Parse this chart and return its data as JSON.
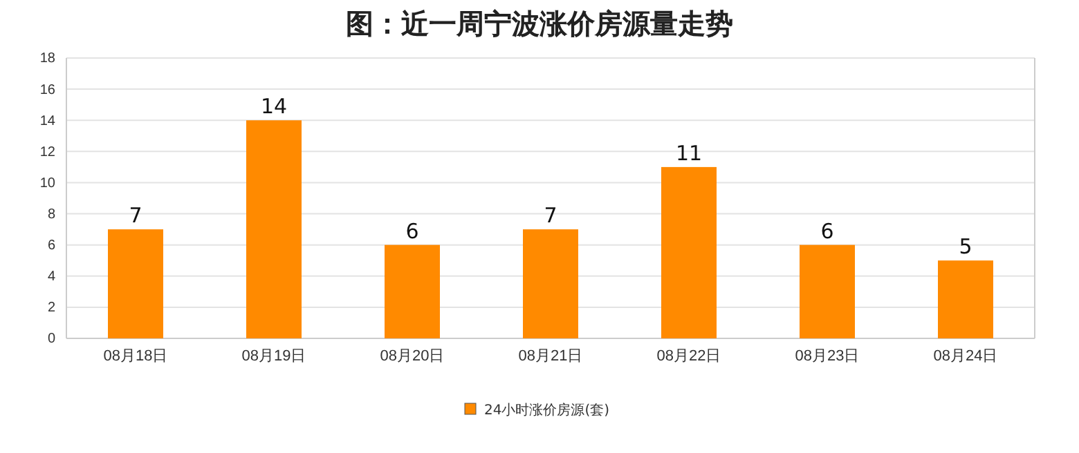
{
  "chart_data": {
    "type": "bar",
    "title": "图：近一周宁波涨价房源量走势",
    "categories": [
      "08月18日",
      "08月19日",
      "08月20日",
      "08月21日",
      "08月22日",
      "08月23日",
      "08月24日"
    ],
    "series": [
      {
        "name": "24小时涨价房源(套)",
        "color": "#ff8a00",
        "values": [
          7,
          14,
          6,
          7,
          11,
          6,
          5
        ]
      }
    ],
    "ylim": [
      0,
      18
    ],
    "yticks": [
      0,
      2,
      4,
      6,
      8,
      10,
      12,
      14,
      16,
      18
    ],
    "grid": "y",
    "legend": "bottom",
    "data_labels": true
  }
}
